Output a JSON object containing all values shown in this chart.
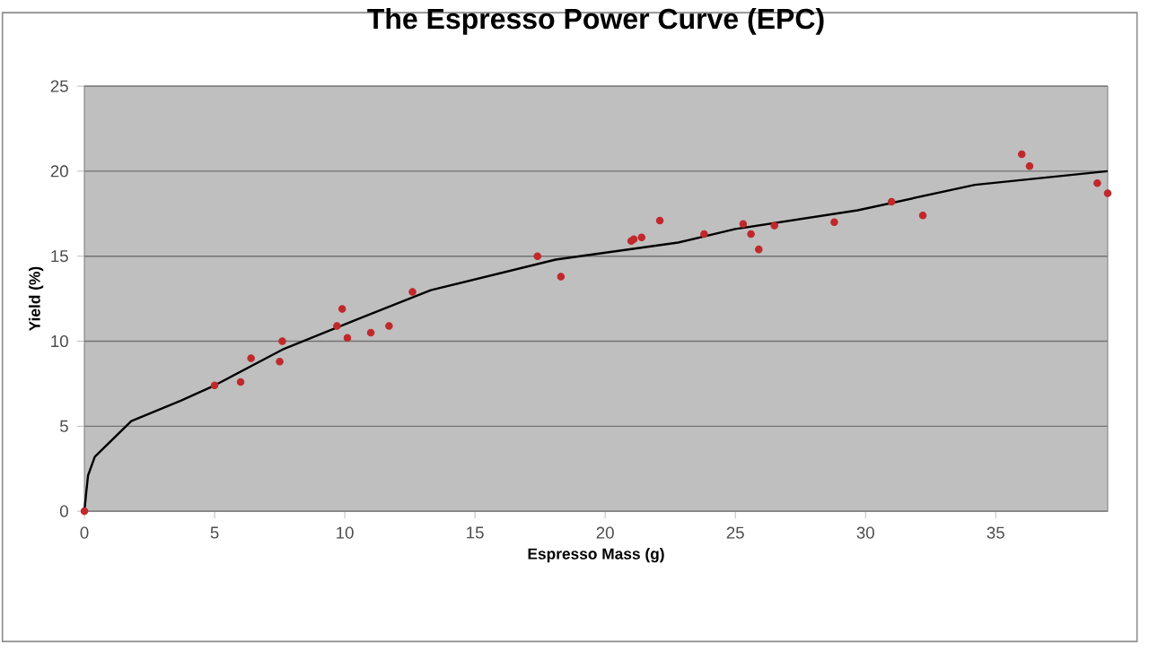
{
  "chart_data": {
    "type": "scatter",
    "title": "The Espresso Power Curve (EPC)",
    "xlabel": "Espresso Mass (g)",
    "ylabel": "Yield (%)",
    "xlim": [
      0,
      39.3
    ],
    "ylim": [
      0,
      25
    ],
    "xticks": [
      0,
      5,
      10,
      15,
      20,
      25,
      30,
      35
    ],
    "yticks": [
      0,
      5,
      10,
      15,
      20,
      25
    ],
    "grid": "y",
    "marker": "circle",
    "series": [
      {
        "color": "#c0282b",
        "x": [
          0,
          5.0,
          6.0,
          6.4,
          7.5,
          7.6,
          9.9,
          9.7,
          10.1,
          11.0,
          11.7,
          12.6,
          17.4,
          18.3,
          21.0,
          21.1,
          21.4,
          22.1,
          23.8,
          25.3,
          25.6,
          25.9,
          26.5,
          28.8,
          31.0,
          32.2,
          36.0,
          36.3,
          38.9,
          39.3
        ],
        "values": [
          0,
          7.4,
          7.6,
          9.0,
          8.8,
          10.0,
          11.9,
          10.9,
          10.2,
          10.5,
          10.9,
          12.9,
          15.0,
          13.8,
          15.9,
          16.0,
          16.1,
          17.1,
          16.3,
          16.9,
          16.3,
          15.4,
          16.8,
          17.0,
          18.2,
          17.4,
          21.0,
          20.3,
          19.3,
          18.7
        ]
      },
      {
        "type": "line",
        "color": "#000000",
        "marker": "none",
        "x": [
          0,
          0.07,
          0.14,
          0.4,
          1.8,
          3.7,
          5.0,
          7.6,
          10.5,
          13.3,
          18.1,
          22.8,
          25.0,
          29.7,
          34.2,
          39.3
        ],
        "values": [
          0,
          1.1,
          2.1,
          3.2,
          5.3,
          6.5,
          7.4,
          9.5,
          11.3,
          13.0,
          14.8,
          15.8,
          16.6,
          17.7,
          19.2,
          20.0
        ]
      }
    ]
  }
}
